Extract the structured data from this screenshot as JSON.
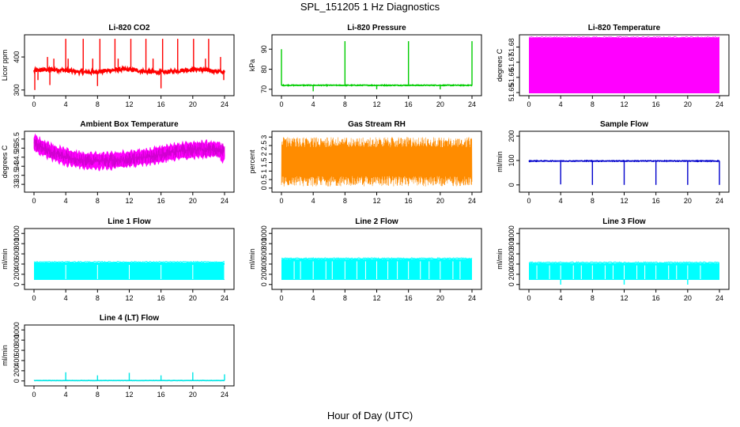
{
  "title": "SPL_151205  1 Hz Diagnostics",
  "xlabel": "Hour of Day (UTC)",
  "chart_data": [
    {
      "type": "line",
      "title": "Li-820 CO2",
      "ylabel": "Licor ppm",
      "xlim": [
        0,
        24
      ],
      "ylim": [
        290,
        460
      ],
      "yticks": [
        300,
        400
      ],
      "xticks": [
        0,
        4,
        8,
        12,
        16,
        20,
        24
      ],
      "color": "#ff0000",
      "style": "noisy",
      "baseline": 358,
      "amplitude": 6,
      "spikes": [
        {
          "x": 0.1,
          "y": 300
        },
        {
          "x": 0.5,
          "y": 330
        },
        {
          "x": 1.7,
          "y": 400
        },
        {
          "x": 2.0,
          "y": 315
        },
        {
          "x": 2.5,
          "y": 395
        },
        {
          "x": 4.0,
          "y": 455
        },
        {
          "x": 4.3,
          "y": 395
        },
        {
          "x": 6.2,
          "y": 455
        },
        {
          "x": 7.4,
          "y": 395
        },
        {
          "x": 8.0,
          "y": 312
        },
        {
          "x": 8.3,
          "y": 455
        },
        {
          "x": 10.2,
          "y": 455
        },
        {
          "x": 10.6,
          "y": 395
        },
        {
          "x": 12.2,
          "y": 455
        },
        {
          "x": 14.1,
          "y": 455
        },
        {
          "x": 15.0,
          "y": 395
        },
        {
          "x": 16.0,
          "y": 305
        },
        {
          "x": 16.2,
          "y": 455
        },
        {
          "x": 18.1,
          "y": 455
        },
        {
          "x": 20.1,
          "y": 455
        },
        {
          "x": 21.6,
          "y": 395
        },
        {
          "x": 22.0,
          "y": 455
        },
        {
          "x": 23.5,
          "y": 400
        },
        {
          "x": 23.9,
          "y": 330
        }
      ]
    },
    {
      "type": "line",
      "title": "Li-820 Pressure",
      "ylabel": "kPa",
      "xlim": [
        0,
        24
      ],
      "ylim": [
        68,
        96
      ],
      "yticks": [
        70,
        80,
        90
      ],
      "xticks": [
        0,
        4,
        8,
        12,
        16,
        20,
        24
      ],
      "color": "#00cc00",
      "style": "flat",
      "baseline": 72,
      "amplitude": 0.2,
      "spikes": [
        {
          "x": 0.0,
          "y": 90
        },
        {
          "x": 4.0,
          "y": 69
        },
        {
          "x": 8.0,
          "y": 94
        },
        {
          "x": 12.0,
          "y": 70
        },
        {
          "x": 16.0,
          "y": 94
        },
        {
          "x": 20.0,
          "y": 70
        },
        {
          "x": 24.0,
          "y": 94
        }
      ]
    },
    {
      "type": "line",
      "title": "Li-820 Temperature",
      "ylabel": "degrees C",
      "xlim": [
        0,
        24
      ],
      "ylim": [
        51.6495,
        51.6865
      ],
      "yticks": [
        51.65,
        51.66,
        51.67,
        51.68
      ],
      "xticks": [
        0,
        4,
        8,
        12,
        16,
        20,
        24
      ],
      "color": "#ff00ff",
      "style": "block",
      "band": [
        51.6495,
        51.686
      ]
    },
    {
      "type": "line",
      "title": "Ambient Box Temperature",
      "ylabel": "degrees C",
      "xlim": [
        0,
        24
      ],
      "ylim": [
        32.7,
        35.8
      ],
      "yticks": [
        33.0,
        33.5,
        34.0,
        34.5,
        35.0,
        35.5
      ],
      "xticks": [
        0,
        4,
        8,
        12,
        16,
        20,
        24
      ],
      "color": "#ff00ff",
      "style": "ambient"
    },
    {
      "type": "line",
      "title": "Gas Stream RH",
      "ylabel": "percent",
      "xlim": [
        0,
        24
      ],
      "ylim": [
        -0.1,
        3.2
      ],
      "yticks": [
        0.0,
        0.5,
        1.0,
        1.5,
        2.0,
        2.5,
        3.0
      ],
      "xticks": [
        0,
        4,
        8,
        12,
        16,
        20,
        24
      ],
      "color": "#ff8c00",
      "style": "rh",
      "band": [
        0.1,
        3.0
      ]
    },
    {
      "type": "line",
      "title": "Sample Flow",
      "ylabel": "ml/min",
      "xlim": [
        0,
        24
      ],
      "ylim": [
        -20,
        210
      ],
      "yticks": [
        0,
        100,
        200
      ],
      "xticks": [
        0,
        4,
        8,
        12,
        16,
        20,
        24
      ],
      "color": "#0000cc",
      "style": "flat",
      "baseline": 98,
      "amplitude": 1.5,
      "spikes": [
        {
          "x": 4.0,
          "y": 2
        },
        {
          "x": 8.0,
          "y": 0
        },
        {
          "x": 12.0,
          "y": 0
        },
        {
          "x": 16.0,
          "y": 0
        },
        {
          "x": 20.0,
          "y": 0
        },
        {
          "x": 24.0,
          "y": 0
        }
      ]
    },
    {
      "type": "line",
      "title": "Line 1 Flow",
      "ylabel": "ml/min",
      "xlim": [
        0,
        24
      ],
      "ylim": [
        -50,
        1050
      ],
      "yticks": [
        0,
        200,
        400,
        600,
        800,
        1000
      ],
      "xticks": [
        0,
        4,
        8,
        12,
        16,
        20,
        24
      ],
      "color": "#00ffff",
      "style": "block",
      "band": [
        90,
        430
      ],
      "gaps": [
        4.0,
        8.0,
        12.0,
        16.0,
        20.0,
        24.0
      ]
    },
    {
      "type": "line",
      "title": "Line 2 Flow",
      "ylabel": "ml/min",
      "xlim": [
        0,
        24
      ],
      "ylim": [
        -50,
        1050
      ],
      "yticks": [
        0,
        200,
        400,
        600,
        800,
        1000
      ],
      "xticks": [
        0,
        4,
        8,
        12,
        16,
        20,
        24
      ],
      "color": "#00ffff",
      "style": "block",
      "band": [
        90,
        500
      ],
      "gaps": [
        1.6,
        2.4,
        4.0,
        5.6,
        6.4,
        8.0,
        9.5,
        10.6,
        12.0,
        13.4,
        14.6,
        16.0,
        17.5,
        18.6,
        20.0,
        21.6,
        22.5
      ]
    },
    {
      "type": "line",
      "title": "Line 3 Flow",
      "ylabel": "ml/min",
      "xlim": [
        0,
        24
      ],
      "ylim": [
        -50,
        1050
      ],
      "yticks": [
        0,
        200,
        400,
        600,
        800,
        1000
      ],
      "xticks": [
        0,
        4,
        8,
        12,
        16,
        20,
        24
      ],
      "color": "#00ffff",
      "style": "block",
      "band": [
        90,
        420
      ],
      "gaps": [
        1.0,
        2.6,
        4.0,
        5.6,
        6.6,
        8.0,
        9.6,
        10.6,
        12.0,
        13.6,
        14.6,
        16.0,
        17.6,
        18.6,
        20.0,
        21.6
      ],
      "dips": [
        4.0,
        12.0,
        20.0
      ]
    },
    {
      "type": "line",
      "title": "Line 4 (LT) Flow",
      "ylabel": "ml/min",
      "xlim": [
        0,
        24
      ],
      "ylim": [
        -50,
        1050
      ],
      "yticks": [
        0,
        200,
        400,
        600,
        800,
        1000
      ],
      "xticks": [
        0,
        4,
        8,
        12,
        16,
        20,
        24
      ],
      "color": "#00e6e6",
      "style": "flat",
      "baseline": 8,
      "amplitude": 2,
      "spikes": [
        {
          "x": 4.0,
          "y": 170
        },
        {
          "x": 8.0,
          "y": 110
        },
        {
          "x": 12.0,
          "y": 160
        },
        {
          "x": 16.0,
          "y": 110
        },
        {
          "x": 20.0,
          "y": 170
        },
        {
          "x": 24.0,
          "y": 130
        }
      ]
    }
  ]
}
